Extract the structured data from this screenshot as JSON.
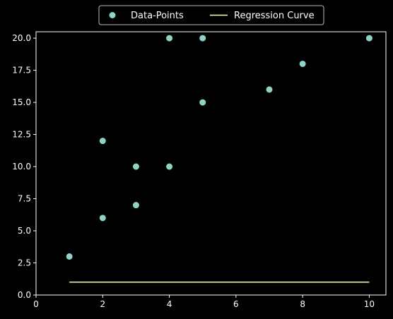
{
  "chart_data": {
    "type": "scatter",
    "title": "",
    "xlabel": "",
    "ylabel": "",
    "xlim": [
      0,
      10.5
    ],
    "ylim": [
      0,
      20.5
    ],
    "x_ticks": [
      0,
      2,
      4,
      6,
      8,
      10
    ],
    "x_tick_labels": [
      "0",
      "2",
      "4",
      "6",
      "8",
      "10"
    ],
    "y_ticks": [
      0,
      2.5,
      5,
      7.5,
      10,
      12.5,
      15,
      17.5,
      20
    ],
    "y_tick_labels": [
      "0.0",
      "2.5",
      "5.0",
      "7.5",
      "10.0",
      "12.5",
      "15.0",
      "17.5",
      "20.0"
    ],
    "grid": false,
    "legend": {
      "placement": "top-center",
      "entries": [
        "Data-Points",
        "Regression Curve"
      ]
    },
    "series": [
      {
        "name": "Data-Points",
        "kind": "scatter",
        "color": "#8dd3c7",
        "points": [
          {
            "x": 1,
            "y": 3
          },
          {
            "x": 2,
            "y": 6
          },
          {
            "x": 2,
            "y": 12
          },
          {
            "x": 3,
            "y": 7
          },
          {
            "x": 3,
            "y": 10
          },
          {
            "x": 4,
            "y": 10
          },
          {
            "x": 4,
            "y": 20
          },
          {
            "x": 5,
            "y": 15
          },
          {
            "x": 5,
            "y": 20
          },
          {
            "x": 7,
            "y": 16
          },
          {
            "x": 8,
            "y": 18
          },
          {
            "x": 10,
            "y": 20
          }
        ]
      },
      {
        "name": "Regression Curve",
        "kind": "line",
        "color": "#feffb3",
        "points": [
          {
            "x": 1,
            "y": 1
          },
          {
            "x": 10,
            "y": 1
          }
        ]
      }
    ]
  }
}
